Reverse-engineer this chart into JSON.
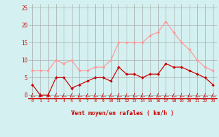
{
  "hours": [
    0,
    1,
    2,
    3,
    4,
    5,
    6,
    7,
    8,
    9,
    10,
    11,
    12,
    13,
    14,
    15,
    16,
    17,
    18,
    19,
    20,
    21,
    22,
    23
  ],
  "wind_avg": [
    3,
    0,
    0,
    5,
    5,
    2,
    3,
    4,
    5,
    5,
    4,
    8,
    6,
    6,
    5,
    6,
    6,
    9,
    8,
    8,
    7,
    6,
    5,
    3
  ],
  "wind_gust": [
    7,
    7,
    7,
    10,
    9,
    10,
    7,
    7,
    8,
    8,
    10,
    15,
    15,
    15,
    15,
    17,
    18,
    21,
    18,
    15,
    13,
    10,
    8,
    7
  ],
  "color_avg": "#cc0000",
  "color_gust": "#ff9999",
  "bg_color": "#d4f0f0",
  "grid_color": "#aaaaaa",
  "xlabel": "Vent moyen/en rafales ( km/h )",
  "xlabel_color": "#cc0000",
  "yticks": [
    0,
    5,
    10,
    15,
    20,
    25
  ],
  "ylim": [
    -1,
    26
  ],
  "xlim": [
    -0.5,
    23.5
  ]
}
